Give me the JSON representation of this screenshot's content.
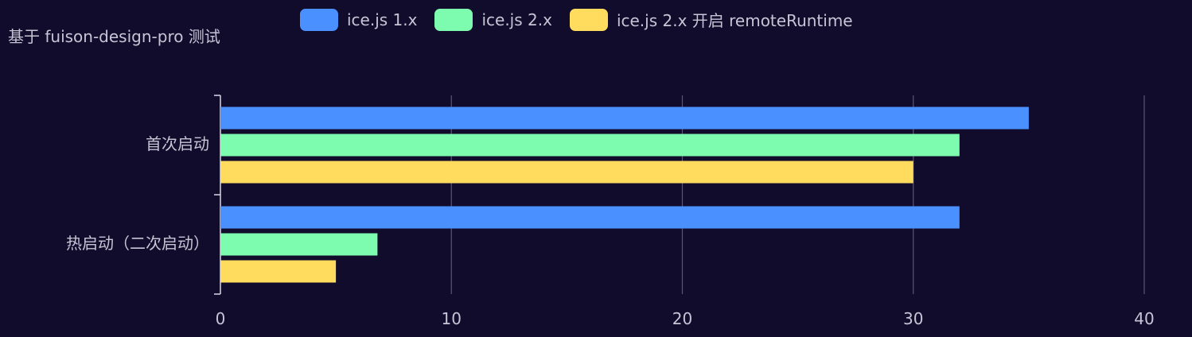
{
  "chart_data": {
    "type": "bar",
    "orientation": "horizontal",
    "title": "基于 fuison-design-pro 测试",
    "categories": [
      "首次启动",
      "热启动（二次启动）"
    ],
    "series": [
      {
        "name": "ice.js 1.x",
        "color": "#4a90ff",
        "values": [
          35,
          32
        ]
      },
      {
        "name": "ice.js 2.x",
        "color": "#7dfcb0",
        "values": [
          32,
          6.8
        ]
      },
      {
        "name": "ice.js 2.x 开启 remoteRuntime",
        "color": "#ffdc5e",
        "values": [
          30,
          5
        ]
      }
    ],
    "xlim": [
      0,
      40
    ],
    "xticks": [
      "0",
      "10",
      "20",
      "30",
      "40"
    ],
    "grid": true,
    "legend_position": "top"
  }
}
